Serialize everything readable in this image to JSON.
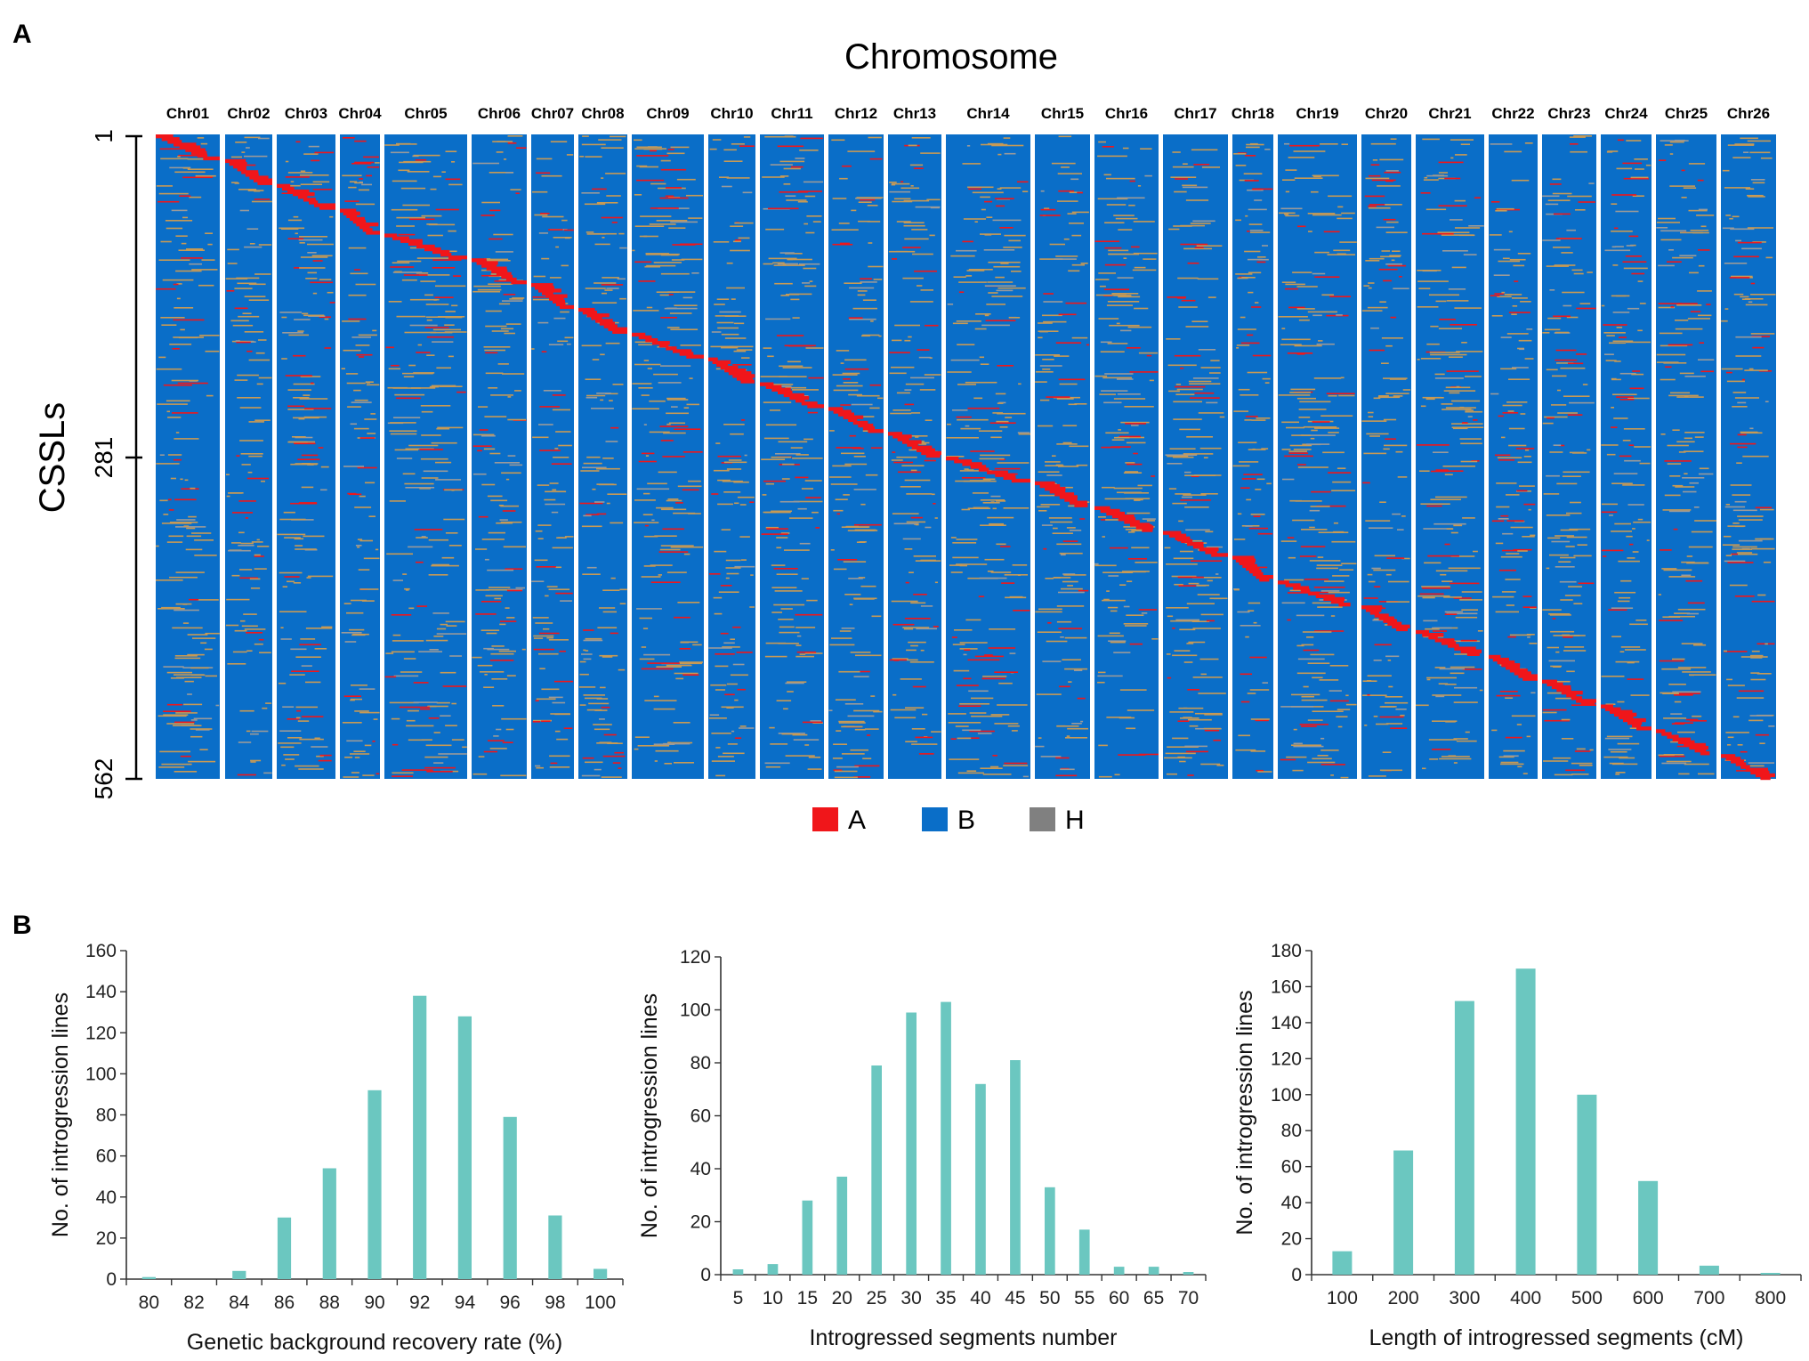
{
  "figure": {
    "panel_a_label": "A",
    "panel_b_label": "B"
  },
  "colors": {
    "A": "#f0161a",
    "B": "#0a6ec8",
    "H": "#808080",
    "bar": "#6bc7c0",
    "hetero_dash": "#c79a55"
  },
  "chart_data": [
    {
      "type": "heatmap",
      "title": "Chromosome",
      "ylabel": "CSSLs",
      "ytick_labels": [
        "1",
        "281",
        "562"
      ],
      "n_lines": 562,
      "columns": [
        "Chr01",
        "Chr02",
        "Chr03",
        "Chr04",
        "Chr05",
        "Chr06",
        "Chr07",
        "Chr08",
        "Chr09",
        "Chr10",
        "Chr11",
        "Chr12",
        "Chr13",
        "Chr14",
        "Chr15",
        "Chr16",
        "Chr17",
        "Chr18",
        "Chr19",
        "Chr20",
        "Chr21",
        "Chr22",
        "Chr23",
        "Chr24",
        "Chr25",
        "Chr26"
      ],
      "legend": [
        {
          "key": "A",
          "label": "A"
        },
        {
          "key": "B",
          "label": "B"
        },
        {
          "key": "H",
          "label": "H"
        }
      ]
    },
    {
      "type": "bar",
      "title": "",
      "xlabel": "Genetic background recovery rate (%)",
      "ylabel": "No. of introgression lines",
      "categories": [
        "80",
        "82",
        "84",
        "86",
        "88",
        "90",
        "92",
        "94",
        "96",
        "98",
        "100"
      ],
      "values": [
        1,
        0,
        4,
        30,
        54,
        92,
        138,
        128,
        79,
        31,
        5
      ],
      "ylim": [
        0,
        160
      ],
      "yticks": [
        "0",
        "20",
        "40",
        "60",
        "80",
        "100",
        "120",
        "140",
        "160"
      ]
    },
    {
      "type": "bar",
      "title": "",
      "xlabel": "Introgressed segments number",
      "ylabel": "No. of introgression lines",
      "categories": [
        "5",
        "10",
        "15",
        "20",
        "25",
        "30",
        "35",
        "40",
        "45",
        "50",
        "55",
        "60",
        "65",
        "70"
      ],
      "values": [
        2,
        4,
        28,
        37,
        79,
        99,
        103,
        72,
        81,
        33,
        17,
        3,
        3,
        1
      ],
      "ylim": [
        0,
        120
      ],
      "yticks": [
        "0",
        "20",
        "40",
        "60",
        "80",
        "100",
        "120"
      ]
    },
    {
      "type": "bar",
      "title": "",
      "xlabel": "Length of introgressed segments (cM)",
      "ylabel": "No. of introgression lines",
      "categories": [
        "100",
        "200",
        "300",
        "400",
        "500",
        "600",
        "700",
        "800"
      ],
      "values": [
        13,
        69,
        152,
        170,
        100,
        52,
        5,
        1
      ],
      "ylim": [
        0,
        180
      ],
      "yticks": [
        "0",
        "20",
        "40",
        "60",
        "80",
        "100",
        "120",
        "140",
        "160",
        "180"
      ]
    }
  ]
}
